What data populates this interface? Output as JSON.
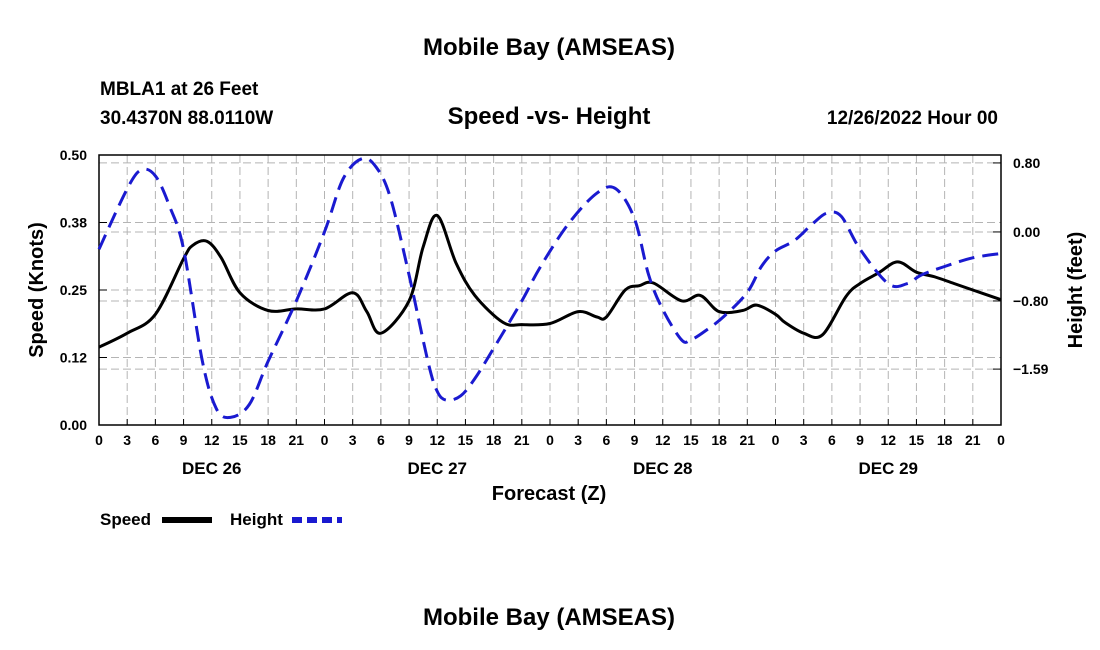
{
  "header": {
    "top_title": "Mobile Bay (AMSEAS)",
    "station": "MBLA1 at 26 Feet",
    "coords": "30.4370N  88.0110W",
    "chart_title": "Speed -vs- Height",
    "timestamp": "12/26/2022 Hour 00",
    "bottom_title": "Mobile Bay (AMSEAS)"
  },
  "legend": {
    "speed_label": "Speed",
    "height_label": "Height"
  },
  "colors": {
    "speed": "#000000",
    "height": "#1a1ad0",
    "grid": "#b4b4b4"
  },
  "chart_data": {
    "type": "line",
    "title": "Speed -vs- Height",
    "xlabel": "Forecast (Z)",
    "ylabel": "Speed (Knots)",
    "y2label": "Height (feet)",
    "xlim": [
      0,
      96
    ],
    "ylim": [
      0,
      0.5
    ],
    "y2lim": [
      -2.238,
      0.892
    ],
    "x_tick_values": [
      0,
      3,
      6,
      9,
      12,
      15,
      18,
      21,
      24,
      27,
      30,
      33,
      36,
      39,
      42,
      45,
      48,
      51,
      54,
      57,
      60,
      63,
      66,
      69,
      72,
      75,
      78,
      81,
      84,
      87,
      90,
      93,
      96
    ],
    "x_tick_labels": [
      "0",
      "3",
      "6",
      "9",
      "12",
      "15",
      "18",
      "21",
      "0",
      "3",
      "6",
      "9",
      "12",
      "15",
      "18",
      "21",
      "0",
      "3",
      "6",
      "9",
      "12",
      "15",
      "18",
      "21",
      "0",
      "3",
      "6",
      "9",
      "12",
      "15",
      "18",
      "21",
      "0"
    ],
    "day_labels": [
      {
        "label": "DEC 26",
        "x": 12
      },
      {
        "label": "DEC 27",
        "x": 36
      },
      {
        "label": "DEC 28",
        "x": 60
      },
      {
        "label": "DEC 29",
        "x": 84
      }
    ],
    "y_ticks": [
      {
        "value": 0.0,
        "label": "0.00"
      },
      {
        "value": 0.125,
        "label": "0.12"
      },
      {
        "value": 0.25,
        "label": "0.25"
      },
      {
        "value": 0.375,
        "label": "0.38"
      },
      {
        "value": 0.5,
        "label": "0.50"
      }
    ],
    "y2_ticks": [
      {
        "value": 0.8,
        "label": "0.80"
      },
      {
        "value": 0.0,
        "label": "0.00"
      },
      {
        "value": -0.8,
        "label": "−0.80"
      },
      {
        "value": -1.59,
        "label": "−1.59"
      }
    ],
    "series": [
      {
        "name": "Speed",
        "axis": "left",
        "style": "solid",
        "x": [
          0,
          3,
          6,
          9,
          10,
          11.5,
          13,
          15,
          18,
          21,
          24,
          27,
          28.5,
          30,
          33,
          34.5,
          36,
          38,
          40,
          43,
          45,
          48,
          51,
          53,
          54,
          56,
          57.5,
          59,
          62,
          64,
          66,
          68.5,
          70,
          72,
          73,
          75,
          77,
          79.5,
          81,
          83,
          85,
          87,
          89,
          91,
          93,
          96
        ],
        "y": [
          0.144,
          0.17,
          0.205,
          0.308,
          0.333,
          0.34,
          0.31,
          0.245,
          0.212,
          0.215,
          0.215,
          0.245,
          0.21,
          0.17,
          0.23,
          0.33,
          0.388,
          0.3,
          0.24,
          0.19,
          0.186,
          0.188,
          0.21,
          0.2,
          0.2,
          0.25,
          0.258,
          0.263,
          0.23,
          0.24,
          0.21,
          0.212,
          0.222,
          0.205,
          0.19,
          0.17,
          0.167,
          0.238,
          0.262,
          0.282,
          0.302,
          0.283,
          0.274,
          0.262,
          0.25,
          0.232
        ]
      },
      {
        "name": "Height",
        "axis": "right",
        "style": "dashed",
        "x": [
          0,
          3,
          4.5,
          6,
          7.5,
          9,
          11,
          12.5,
          14,
          16,
          18,
          21,
          24,
          26,
          28,
          29.5,
          31,
          33,
          35,
          36,
          37,
          38.5,
          40,
          42,
          45,
          47,
          50,
          53,
          55,
          57,
          58.5,
          60,
          62,
          63,
          64.5,
          66.5,
          69,
          70.5,
          72,
          74,
          76,
          77.5,
          79,
          81,
          84,
          86,
          87.5,
          90,
          93,
          96
        ],
        "y": [
          -0.2,
          0.5,
          0.72,
          0.65,
          0.3,
          -0.2,
          -1.5,
          -2.05,
          -2.15,
          -2.0,
          -1.5,
          -0.8,
          0.0,
          0.62,
          0.85,
          0.75,
          0.4,
          -0.5,
          -1.5,
          -1.85,
          -1.95,
          -1.9,
          -1.7,
          -1.35,
          -0.8,
          -0.4,
          0.1,
          0.45,
          0.5,
          0.15,
          -0.5,
          -0.9,
          -1.25,
          -1.25,
          -1.15,
          -0.98,
          -0.7,
          -0.4,
          -0.22,
          -0.1,
          0.1,
          0.22,
          0.18,
          -0.2,
          -0.6,
          -0.6,
          -0.5,
          -0.4,
          -0.3,
          -0.25
        ]
      }
    ],
    "legend_position": "bottom-left"
  }
}
